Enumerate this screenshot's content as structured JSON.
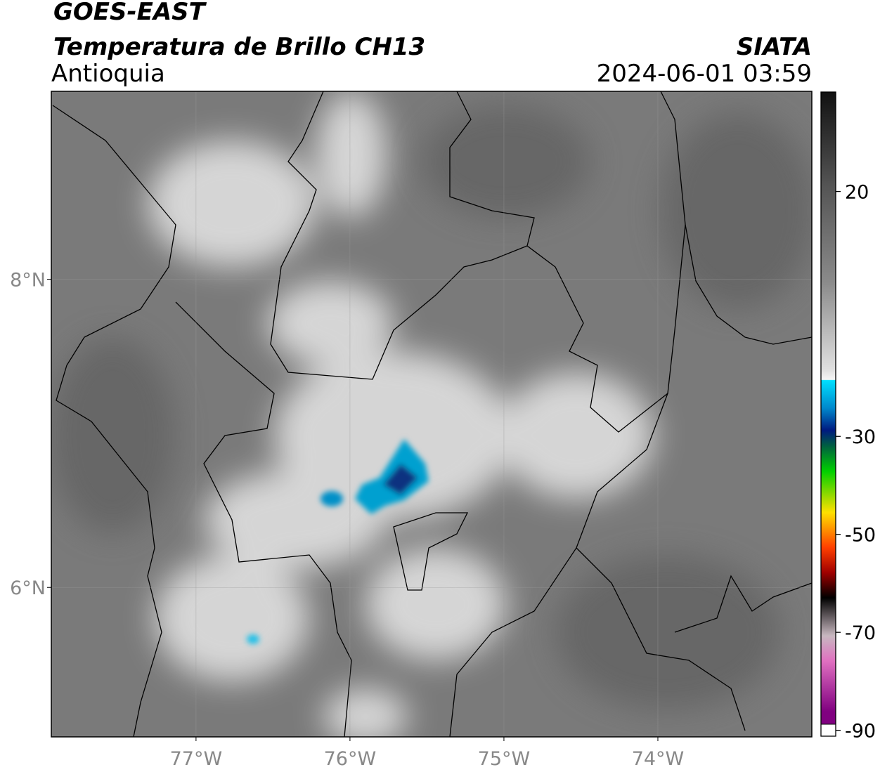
{
  "header": {
    "title": "GOES-EAST",
    "subtitle": "Temperatura de Brillo CH13",
    "region": "Antioquia",
    "source": "SIATA",
    "datetime": "2024-06-01 03:59"
  },
  "map": {
    "xlim": [
      -77.94,
      -73.0
    ],
    "ylim": [
      5.03,
      9.22
    ],
    "xticks": [
      {
        "value": -77,
        "label": "77°W"
      },
      {
        "value": -76,
        "label": "76°W"
      },
      {
        "value": -75,
        "label": "75°W"
      },
      {
        "value": -74,
        "label": "74°W"
      }
    ],
    "yticks": [
      {
        "value": 8,
        "label": "8°N"
      },
      {
        "value": 6,
        "label": "6°N"
      }
    ]
  },
  "colorbar": {
    "lim": [
      -91.2,
      40.3
    ],
    "ticks": [
      20,
      -30,
      -50,
      -70,
      -90
    ]
  }
}
